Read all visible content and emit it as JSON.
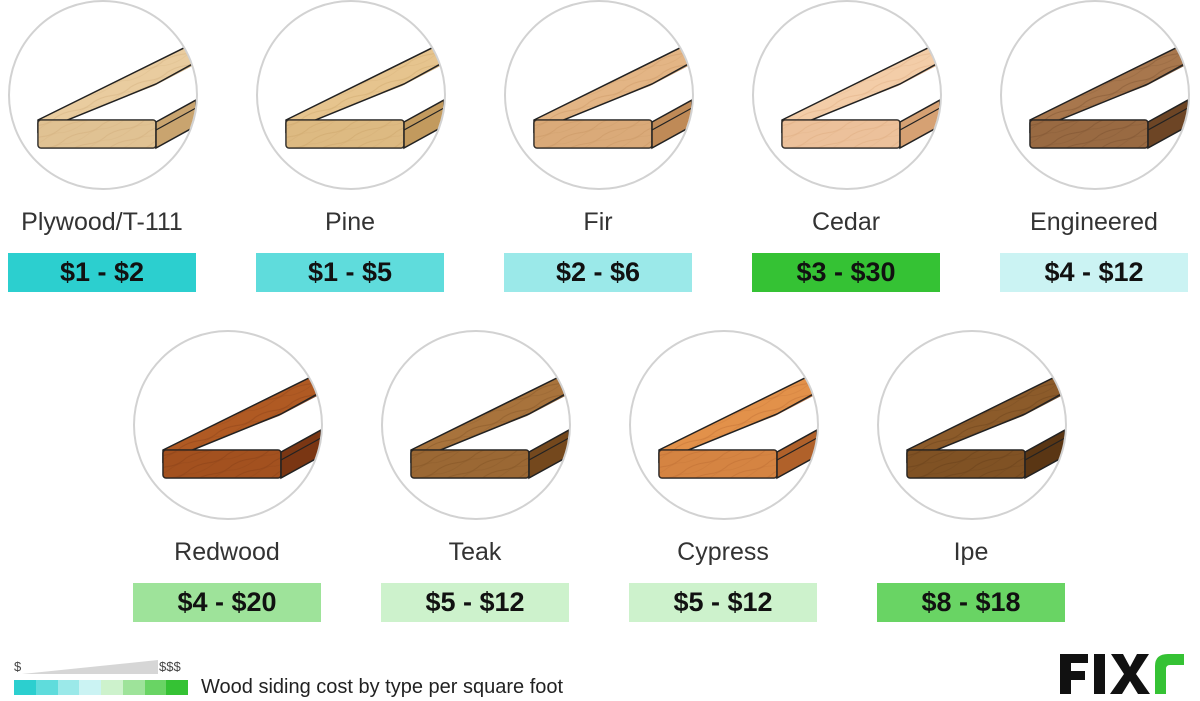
{
  "row1": [
    {
      "name": "Plywood/T-111",
      "price": "$1 - $2",
      "color": "#2ccfcf",
      "wood": "#e9cc9f",
      "dark": "#c9a46f"
    },
    {
      "name": "Pine",
      "price": "$1 - $5",
      "color": "#5fdcdc",
      "wood": "#e6c48e",
      "dark": "#c29a5e"
    },
    {
      "name": "Fir",
      "price": "$2 - $6",
      "color": "#9be9e9",
      "wood": "#e3b585",
      "dark": "#bf8a57"
    },
    {
      "name": "Cedar",
      "price": "$3 - $30",
      "color": "#35c234",
      "wood": "#f3cda8",
      "dark": "#d6a173"
    },
    {
      "name": "Engineered",
      "price": "$4 - $12",
      "color": "#cbf3f3",
      "wood": "#a8774d",
      "dark": "#6d4525"
    }
  ],
  "row2": [
    {
      "name": "Redwood",
      "price": "$4 - $20",
      "color": "#9ee39a",
      "wood": "#b05a23",
      "dark": "#7a3613"
    },
    {
      "name": "Teak",
      "price": "$5 - $12",
      "color": "#cdf2cc",
      "wood": "#a8733c",
      "dark": "#74481d"
    },
    {
      "name": "Cypress",
      "price": "$5 - $12",
      "color": "#cdf2cc",
      "wood": "#e2914a",
      "dark": "#b0612a"
    },
    {
      "name": "Ipe",
      "price": "$8 - $18",
      "color": "#69d464",
      "wood": "#8c5b2a",
      "dark": "#5a3614"
    }
  ],
  "legend": {
    "low": "$",
    "high": "$$$",
    "caption": "Wood siding cost by type per square foot",
    "scale_colors": [
      "#2ccfcf",
      "#5fdcdc",
      "#9be9e9",
      "#cbf3f3",
      "#cdf2cc",
      "#9ee39a",
      "#69d464",
      "#35c234"
    ]
  },
  "logo": {
    "text": "FIXr",
    "main_color": "#111111",
    "accent_color": "#35c234"
  }
}
